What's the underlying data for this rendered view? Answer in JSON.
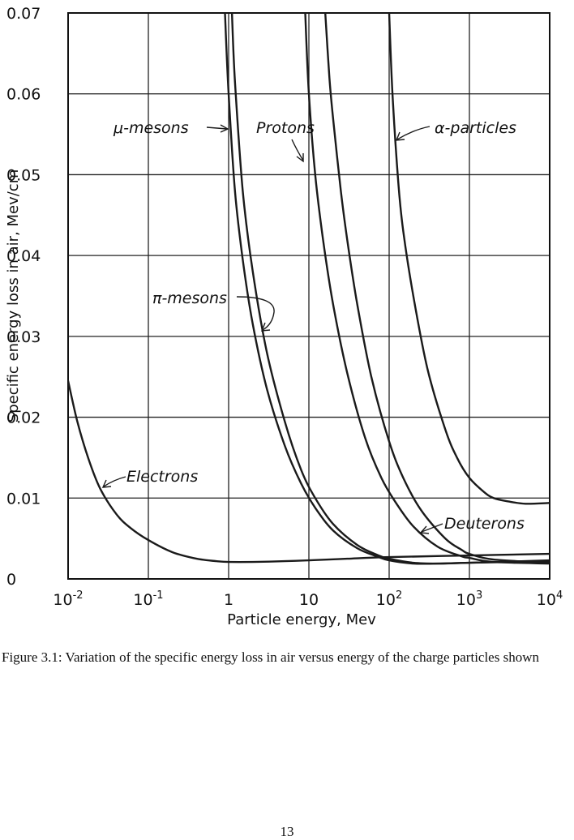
{
  "chart_data": {
    "type": "line",
    "xscale": "log",
    "xlim": [
      0.01,
      10000
    ],
    "ylim": [
      0,
      0.07
    ],
    "grid": true,
    "xlabel": "Particle energy, Mev",
    "ylabel": "Specific energy loss in air, Mev/cm",
    "x_ticks": [
      {
        "base": "10",
        "exp": "-2"
      },
      {
        "base": "10",
        "exp": "-1"
      },
      {
        "base": "1",
        "exp": ""
      },
      {
        "base": "10",
        "exp": ""
      },
      {
        "base": "10",
        "exp": "2"
      },
      {
        "base": "10",
        "exp": "3"
      },
      {
        "base": "10",
        "exp": "4"
      }
    ],
    "y_ticks": [
      "0",
      "0.01",
      "0.02",
      "0.03",
      "0.04",
      "0.05",
      "0.06",
      "0.07"
    ],
    "series": [
      {
        "name": "Electrons",
        "label": "Electrons",
        "x": [
          0.01,
          0.013,
          0.018,
          0.025,
          0.04,
          0.06,
          0.1,
          0.2,
          0.4,
          0.7,
          1,
          2,
          5,
          10,
          30,
          100,
          1000,
          10000
        ],
        "y": [
          0.0245,
          0.0195,
          0.0148,
          0.0112,
          0.008,
          0.0063,
          0.0048,
          0.0033,
          0.0025,
          0.0022,
          0.0021,
          0.0021,
          0.0022,
          0.0023,
          0.0025,
          0.0027,
          0.0029,
          0.0031
        ]
      },
      {
        "name": "μ-mesons",
        "label": "μ-mesons",
        "x": [
          0.9,
          1.0,
          1.2,
          1.5,
          2,
          3,
          5,
          8,
          12,
          20,
          40,
          70,
          100,
          200,
          400,
          1000,
          10000
        ],
        "y": [
          0.07,
          0.06,
          0.048,
          0.0395,
          0.0315,
          0.0235,
          0.0165,
          0.0118,
          0.0088,
          0.006,
          0.0038,
          0.0028,
          0.0023,
          0.0019,
          0.0019,
          0.002,
          0.0023
        ]
      },
      {
        "name": "π-mesons",
        "label": "π-mesons",
        "x": [
          1.1,
          1.2,
          1.5,
          2,
          3,
          5,
          8,
          12,
          20,
          40,
          70,
          100,
          200,
          400,
          1000,
          10000
        ],
        "y": [
          0.07,
          0.0615,
          0.048,
          0.038,
          0.028,
          0.0195,
          0.0135,
          0.01,
          0.0068,
          0.0042,
          0.003,
          0.0025,
          0.002,
          0.0019,
          0.002,
          0.0022
        ]
      },
      {
        "name": "Protons",
        "label": "Protons",
        "x": [
          9,
          10,
          12,
          15,
          20,
          30,
          50,
          80,
          120,
          200,
          400,
          800,
          1000,
          2000,
          10000
        ],
        "y": [
          0.07,
          0.06,
          0.05,
          0.042,
          0.034,
          0.0255,
          0.0175,
          0.0125,
          0.0095,
          0.0065,
          0.004,
          0.0028,
          0.0026,
          0.0021,
          0.0019
        ]
      },
      {
        "name": "Deuterons",
        "label": "Deuterons",
        "x": [
          16,
          18,
          20,
          25,
          30,
          40,
          60,
          100,
          150,
          250,
          500,
          800,
          1000,
          2000,
          10000
        ],
        "y": [
          0.07,
          0.062,
          0.057,
          0.048,
          0.042,
          0.034,
          0.025,
          0.017,
          0.0125,
          0.0085,
          0.005,
          0.0036,
          0.0031,
          0.0024,
          0.002
        ]
      },
      {
        "name": "α-particles",
        "label": "α-particles",
        "x": [
          100,
          110,
          130,
          150,
          200,
          300,
          500,
          700,
          1000,
          1500,
          2000,
          3000,
          5000,
          10000
        ],
        "y": [
          0.07,
          0.06,
          0.049,
          0.043,
          0.035,
          0.026,
          0.0185,
          0.015,
          0.0125,
          0.0108,
          0.01,
          0.0096,
          0.0093,
          0.0094
        ]
      }
    ],
    "annotations": [
      {
        "text": "μ-mesons"
      },
      {
        "text": "Protons"
      },
      {
        "text": "α-particles"
      },
      {
        "text": "π-mesons"
      },
      {
        "text": "Electrons"
      },
      {
        "text": "Deuterons"
      }
    ]
  },
  "caption": "Figure 3.1: Variation of the specific energy loss in air versus energy of the charge particles shown",
  "page_number": "13"
}
